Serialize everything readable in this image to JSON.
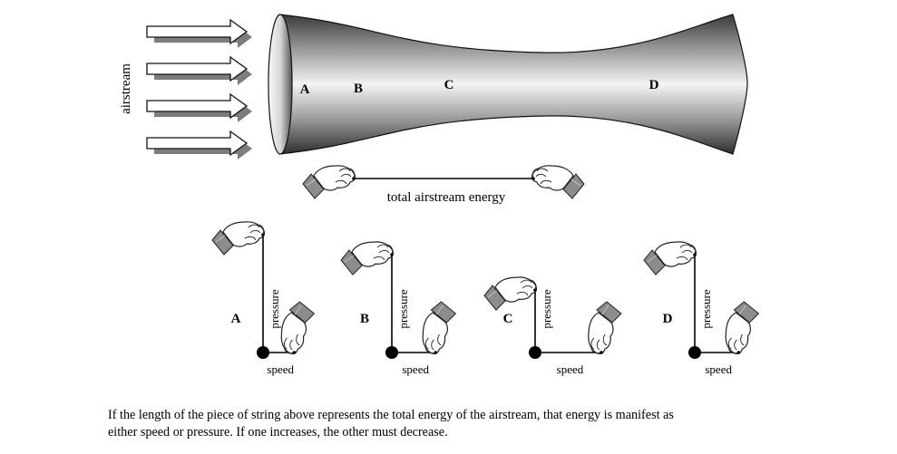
{
  "side_label": "airstream",
  "tube_labels": [
    "A",
    "B",
    "C",
    "D"
  ],
  "total_string_label": "total airstream energy",
  "stations": [
    {
      "label": "A",
      "pressure_label": "pressure",
      "speed_label": "speed",
      "pressure": 1.0,
      "speed": 0.42
    },
    {
      "label": "B",
      "pressure_label": "pressure",
      "speed_label": "speed",
      "pressure": 0.83,
      "speed": 0.59
    },
    {
      "label": "C",
      "pressure_label": "pressure",
      "speed_label": "speed",
      "pressure": 0.53,
      "speed": 0.89
    },
    {
      "label": "D",
      "pressure_label": "pressure",
      "speed_label": "speed",
      "pressure": 0.83,
      "speed": 0.59
    }
  ],
  "caption_line1": "If the length of the piece of string above represents the total energy of the airstream, that energy is manifest as",
  "caption_line2": "either speed or pressure.  If one increases, the other must decrease."
}
